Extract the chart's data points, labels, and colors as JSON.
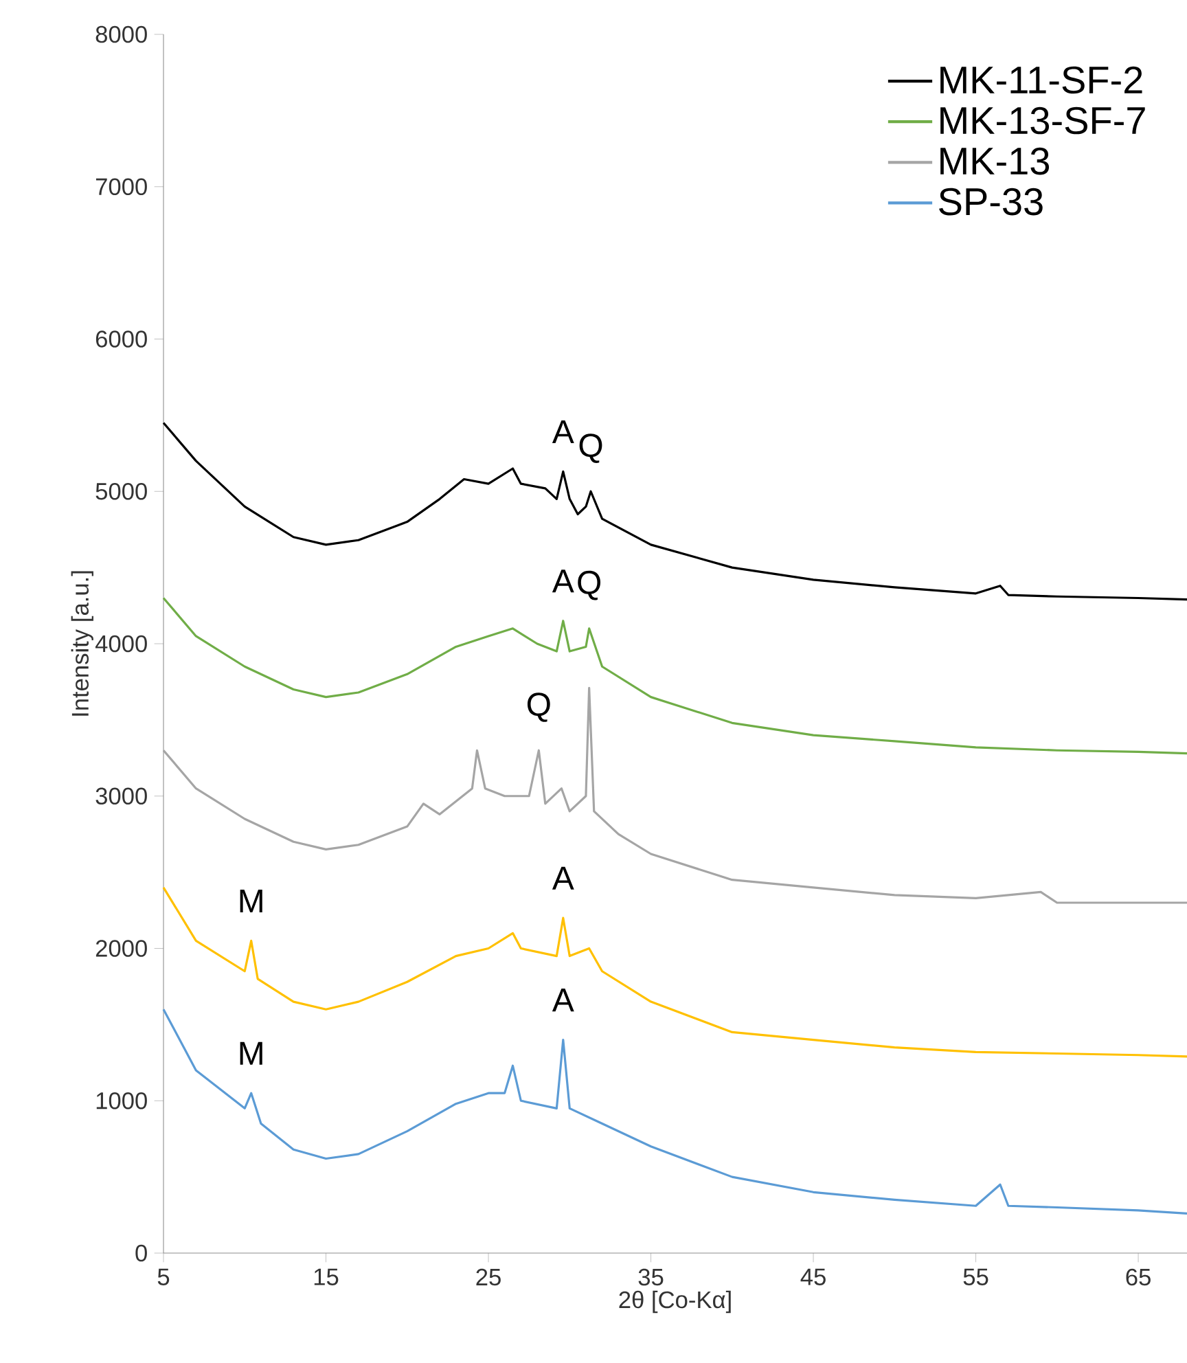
{
  "chart_data": {
    "type": "line",
    "xlabel": "2θ [Co-Kα]",
    "ylabel": "Intensity [a.u.]",
    "xlim": [
      5,
      68
    ],
    "ylim": [
      0,
      8000
    ],
    "xticks": [
      5,
      15,
      25,
      35,
      45,
      55,
      65
    ],
    "yticks": [
      0,
      1000,
      2000,
      3000,
      4000,
      5000,
      6000,
      7000,
      8000
    ],
    "legend": "top right",
    "series": [
      {
        "name": "MK-11-SF-2",
        "color": "#000000",
        "x": [
          5,
          7,
          10,
          13,
          15,
          17,
          20,
          22,
          23.5,
          25,
          26.5,
          27,
          28.5,
          29.2,
          29.6,
          30,
          30.5,
          31,
          31.3,
          32,
          35,
          40,
          45,
          50,
          55,
          56.5,
          57,
          60,
          65,
          68
        ],
        "values": [
          5450,
          5200,
          4900,
          4700,
          4650,
          4680,
          4800,
          4950,
          5080,
          5050,
          5150,
          5050,
          5020,
          4950,
          5130,
          4950,
          4850,
          4900,
          5000,
          4820,
          4650,
          4500,
          4420,
          4370,
          4330,
          4380,
          4320,
          4310,
          4300,
          4290
        ]
      },
      {
        "name": "MK-13-SF-7",
        "color": "#70ad47",
        "x": [
          5,
          7,
          10,
          13,
          15,
          17,
          20,
          23,
          25,
          26.5,
          28,
          29.2,
          29.6,
          30,
          31,
          31.2,
          32,
          35,
          40,
          45,
          50,
          55,
          60,
          65,
          68
        ],
        "values": [
          4300,
          4050,
          3850,
          3700,
          3650,
          3680,
          3800,
          3980,
          4050,
          4100,
          4000,
          3950,
          4150,
          3950,
          3980,
          4100,
          3850,
          3650,
          3480,
          3400,
          3360,
          3320,
          3300,
          3290,
          3280
        ]
      },
      {
        "name": "MK-13",
        "color": "#a5a5a5",
        "x": [
          5,
          7,
          10,
          13,
          15,
          17,
          20,
          21,
          22,
          24,
          24.3,
          24.8,
          26,
          27.5,
          28.1,
          28.5,
          29.5,
          30,
          31,
          31.2,
          31.5,
          33,
          35,
          40,
          45,
          50,
          55,
          59,
          60,
          65,
          68
        ],
        "values": [
          3300,
          3050,
          2850,
          2700,
          2650,
          2680,
          2800,
          2950,
          2880,
          3050,
          3300,
          3050,
          3000,
          3000,
          3300,
          2950,
          3050,
          2900,
          3000,
          3710,
          2900,
          2750,
          2620,
          2450,
          2400,
          2350,
          2330,
          2370,
          2300,
          2300,
          2300
        ]
      },
      {
        "color": "#ffc000",
        "x": [
          5,
          7,
          10,
          10.4,
          10.8,
          13,
          15,
          17,
          20,
          23,
          25,
          26.5,
          27,
          29.2,
          29.6,
          30,
          31.2,
          32,
          35,
          40,
          45,
          50,
          55,
          60,
          65,
          68
        ],
        "values": [
          2400,
          2050,
          1850,
          2050,
          1800,
          1650,
          1600,
          1650,
          1780,
          1950,
          2000,
          2100,
          2000,
          1950,
          2200,
          1950,
          2000,
          1850,
          1650,
          1450,
          1400,
          1350,
          1320,
          1310,
          1300,
          1290
        ]
      },
      {
        "name": "SP-33",
        "color": "#5b9bd5",
        "x": [
          5,
          7,
          10,
          10.4,
          11,
          13,
          15,
          17,
          20,
          23,
          25,
          26,
          26.5,
          27,
          29.2,
          29.6,
          30,
          32,
          35,
          40,
          45,
          50,
          55,
          56.5,
          57,
          60,
          65,
          68
        ],
        "values": [
          1600,
          1200,
          950,
          1050,
          850,
          680,
          620,
          650,
          800,
          980,
          1050,
          1050,
          1230,
          1000,
          950,
          1400,
          950,
          850,
          700,
          500,
          400,
          350,
          310,
          450,
          310,
          300,
          280,
          260
        ]
      }
    ],
    "annotations": [
      {
        "text": "A",
        "x": 29.6,
        "y": 5130
      },
      {
        "text": "Q",
        "x": 31.3,
        "y": 5000
      },
      {
        "text": "A",
        "x": 29.6,
        "y": 4150
      },
      {
        "text": "Q",
        "x": 31.2,
        "y": 4100
      },
      {
        "text": "Q",
        "x": 28.1,
        "y": 3300
      },
      {
        "text": "M",
        "x": 10.4,
        "y": 2050
      },
      {
        "text": "A",
        "x": 29.6,
        "y": 2200
      },
      {
        "text": "M",
        "x": 10.4,
        "y": 1050
      },
      {
        "text": "A",
        "x": 29.6,
        "y": 1400
      }
    ]
  }
}
